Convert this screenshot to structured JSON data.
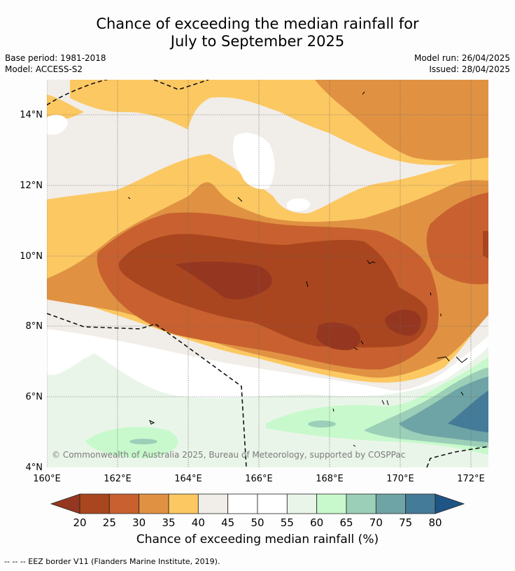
{
  "title": {
    "line1": "Chance of exceeding the median rainfall for",
    "line2": "July to September 2025"
  },
  "meta": {
    "base_period": "Base period: 1981-2018",
    "model": "Model: ACCESS-S2",
    "model_run": "Model run: 26/04/2025",
    "issued": "Issued: 28/04/2025"
  },
  "map": {
    "lat_ticks": [
      "14°N",
      "12°N",
      "10°N",
      "8°N",
      "6°N",
      "4°N"
    ],
    "lon_ticks": [
      "160°E",
      "162°E",
      "164°E",
      "166°E",
      "168°E",
      "170°E",
      "172°E"
    ],
    "copyright": "© Commonwealth of Australia 2025, Bureau of Meteorology, supported by COSPPac"
  },
  "colorbar": {
    "labels": [
      "20",
      "25",
      "30",
      "35",
      "40",
      "45",
      "50",
      "55",
      "60",
      "65",
      "70",
      "75",
      "80"
    ],
    "title": "Chance of exceeding median rainfall (%)",
    "colors": [
      "#a9461f",
      "#c8612f",
      "#e09242",
      "#fcc862",
      "#f1ede8",
      "#ffffff",
      "#ffffff",
      "#eaf5e9",
      "#c8f9cc",
      "#9ccfb8",
      "#6fa4a6",
      "#447b98"
    ],
    "under_color": "#953720",
    "over_color": "#1e5584"
  },
  "footnote": "-- -- -- EEZ border V11 (Flanders Marine Institute, 2019)."
}
